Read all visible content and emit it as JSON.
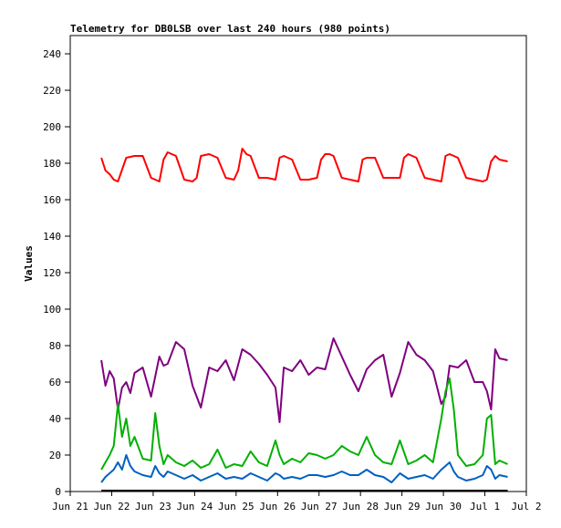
{
  "chart_data": {
    "type": "line",
    "title": "Telemetry for DB0LSB over last 240 hours (980 points)",
    "ylabel": "Values",
    "xlabel": "",
    "ylim": [
      0,
      250
    ],
    "yticks": [
      0,
      20,
      40,
      60,
      80,
      100,
      120,
      140,
      160,
      180,
      200,
      220,
      240
    ],
    "xlim": [
      "Jun 21",
      "Jul 2"
    ],
    "xticks": [
      "Jun 21",
      "Jun 22",
      "Jun 23",
      "Jun 24",
      "Jun 25",
      "Jun 26",
      "Jun 27",
      "Jun 28",
      "Jun 29",
      "Jun 30",
      "Jul 1",
      "Jul 2"
    ],
    "grid": false,
    "legend": "none",
    "series": [
      {
        "color": "#ff0000",
        "x": [
          21.75,
          21.85,
          21.95,
          22.05,
          22.15,
          22.35,
          22.55,
          22.75,
          22.95,
          23.05,
          23.15,
          23.25,
          23.35,
          23.55,
          23.75,
          23.95,
          24.05,
          24.15,
          24.35,
          24.55,
          24.75,
          24.95,
          25.05,
          25.15,
          25.25,
          25.35,
          25.55,
          25.75,
          25.95,
          26.05,
          26.15,
          26.35,
          26.55,
          26.75,
          26.95,
          27.05,
          27.15,
          27.25,
          27.35,
          27.55,
          27.75,
          27.95,
          28.05,
          28.15,
          28.35,
          28.55,
          28.75,
          28.95,
          29.05,
          29.15,
          29.25,
          29.35,
          29.55,
          29.75,
          29.95,
          30.05,
          30.15,
          30.35,
          30.55,
          30.75,
          30.95,
          31.05,
          31.15,
          31.25,
          31.35,
          31.55
        ],
        "values": [
          183,
          176,
          174,
          171,
          170,
          183,
          184,
          184,
          172,
          171,
          170,
          182,
          186,
          184,
          171,
          170,
          172,
          184,
          185,
          183,
          172,
          171,
          176,
          188,
          185,
          184,
          172,
          172,
          171,
          183,
          184,
          182,
          171,
          171,
          172,
          182,
          185,
          185,
          184,
          172,
          171,
          170,
          182,
          183,
          183,
          172,
          172,
          172,
          183,
          185,
          184,
          183,
          172,
          171,
          170,
          184,
          185,
          183,
          172,
          171,
          170,
          171,
          181,
          184,
          182,
          181
        ]
      },
      {
        "color": "#7f007f",
        "x": [
          21.75,
          21.85,
          21.95,
          22.05,
          22.15,
          22.25,
          22.35,
          22.45,
          22.55,
          22.75,
          22.95,
          23.15,
          23.25,
          23.35,
          23.55,
          23.75,
          23.95,
          24.15,
          24.35,
          24.55,
          24.75,
          24.95,
          25.15,
          25.35,
          25.55,
          25.75,
          25.95,
          26.05,
          26.15,
          26.35,
          26.55,
          26.75,
          26.95,
          27.15,
          27.35,
          27.55,
          27.75,
          27.95,
          28.15,
          28.35,
          28.55,
          28.75,
          28.95,
          29.15,
          29.35,
          29.55,
          29.75,
          29.95,
          30.05,
          30.15,
          30.35,
          30.55,
          30.75,
          30.95,
          31.05,
          31.15,
          31.25,
          31.35,
          31.55
        ],
        "values": [
          72,
          58,
          66,
          62,
          45,
          57,
          60,
          54,
          65,
          68,
          52,
          74,
          69,
          70,
          82,
          78,
          58,
          46,
          68,
          66,
          72,
          61,
          78,
          75,
          70,
          64,
          57,
          38,
          68,
          66,
          72,
          64,
          68,
          67,
          84,
          74,
          64,
          55,
          67,
          72,
          75,
          52,
          65,
          82,
          75,
          72,
          66,
          48,
          52,
          69,
          68,
          72,
          60,
          60,
          55,
          45,
          78,
          73,
          72
        ]
      },
      {
        "color": "#00b000",
        "x": [
          21.75,
          21.85,
          21.95,
          22.05,
          22.15,
          22.25,
          22.35,
          22.45,
          22.55,
          22.75,
          22.95,
          23.05,
          23.15,
          23.25,
          23.35,
          23.55,
          23.75,
          23.95,
          24.15,
          24.35,
          24.55,
          24.75,
          24.95,
          25.15,
          25.35,
          25.55,
          25.75,
          25.95,
          26.05,
          26.15,
          26.35,
          26.55,
          26.75,
          26.95,
          27.15,
          27.35,
          27.55,
          27.75,
          27.95,
          28.15,
          28.35,
          28.55,
          28.75,
          28.95,
          29.15,
          29.35,
          29.55,
          29.75,
          29.95,
          30.05,
          30.15,
          30.25,
          30.35,
          30.55,
          30.75,
          30.95,
          31.05,
          31.15,
          31.25,
          31.35,
          31.55
        ],
        "values": [
          12,
          16,
          20,
          25,
          48,
          30,
          40,
          25,
          30,
          18,
          17,
          43,
          25,
          15,
          20,
          16,
          14,
          17,
          13,
          15,
          23,
          13,
          15,
          14,
          22,
          16,
          14,
          28,
          20,
          15,
          18,
          16,
          21,
          20,
          18,
          20,
          25,
          22,
          20,
          30,
          20,
          16,
          15,
          28,
          15,
          17,
          20,
          16,
          40,
          55,
          62,
          45,
          20,
          14,
          15,
          20,
          40,
          42,
          15,
          17,
          15
        ]
      },
      {
        "color": "#0060c0",
        "x": [
          21.75,
          21.85,
          21.95,
          22.05,
          22.15,
          22.25,
          22.35,
          22.45,
          22.55,
          22.75,
          22.95,
          23.05,
          23.15,
          23.25,
          23.35,
          23.55,
          23.75,
          23.95,
          24.15,
          24.35,
          24.55,
          24.75,
          24.95,
          25.15,
          25.35,
          25.55,
          25.75,
          25.95,
          26.05,
          26.15,
          26.35,
          26.55,
          26.75,
          26.95,
          27.15,
          27.35,
          27.55,
          27.75,
          27.95,
          28.15,
          28.35,
          28.55,
          28.75,
          28.95,
          29.15,
          29.35,
          29.55,
          29.75,
          29.95,
          30.05,
          30.15,
          30.25,
          30.35,
          30.55,
          30.75,
          30.95,
          31.05,
          31.15,
          31.25,
          31.35,
          31.55
        ],
        "values": [
          5,
          8,
          10,
          12,
          16,
          12,
          20,
          14,
          11,
          9,
          8,
          14,
          10,
          8,
          11,
          9,
          7,
          9,
          6,
          8,
          10,
          7,
          8,
          7,
          10,
          8,
          6,
          10,
          9,
          7,
          8,
          7,
          9,
          9,
          8,
          9,
          11,
          9,
          9,
          12,
          9,
          8,
          5,
          10,
          7,
          8,
          9,
          7,
          12,
          14,
          16,
          11,
          8,
          6,
          7,
          9,
          14,
          12,
          7,
          9,
          8
        ]
      }
    ]
  }
}
